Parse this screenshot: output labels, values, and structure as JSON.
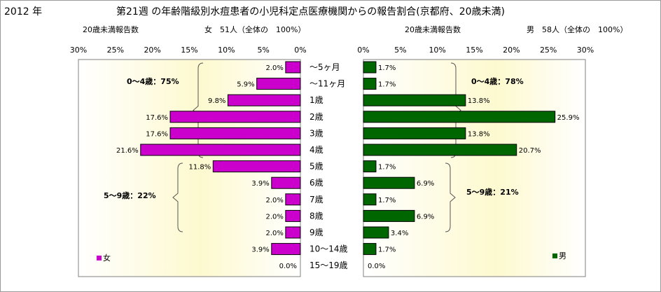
{
  "header": {
    "year": "2012 年",
    "title": "第21週 の年齢階級別水痘患者の小児科定点医療機関からの報告割合(京都府、20歳未満)"
  },
  "female_panel": {
    "subtitle": "20歳未満報告数",
    "summary": "女　51人（全体の　100%）",
    "legend": "女",
    "bracket_a": "0〜4歳：75%",
    "bracket_b": "5〜9歳：22%"
  },
  "male_panel": {
    "subtitle": "20歳未満報告数",
    "summary": "男　58人（全体の　100%）",
    "legend": "男",
    "bracket_a": "0〜4歳：78%",
    "bracket_b": "5〜9歳：21%"
  },
  "colors": {
    "female": "#cc00cc",
    "male": "#006600",
    "gradient_edge": "#fcf7c2"
  },
  "chart_data": {
    "type": "bar",
    "orientation": "horizontal",
    "categories": [
      "〜5ヶ月",
      "〜11ヶ月",
      "1歳",
      "2歳",
      "3歳",
      "4歳",
      "5歳",
      "6歳",
      "7歳",
      "8歳",
      "9歳",
      "10〜14歳",
      "15〜19歳"
    ],
    "series": [
      {
        "name": "女",
        "values": [
          2.0,
          5.9,
          9.8,
          17.6,
          17.6,
          21.6,
          11.8,
          3.9,
          2.0,
          2.0,
          2.0,
          3.9,
          0.0
        ],
        "labels": [
          "2.0%",
          "5.9%",
          "9.8%",
          "17.6%",
          "17.6%",
          "21.6%",
          "11.8%",
          "3.9%",
          "2.0%",
          "2.0%",
          "2.0%",
          "3.9%",
          "0.0%"
        ]
      },
      {
        "name": "男",
        "values": [
          1.7,
          1.7,
          13.8,
          25.9,
          13.8,
          20.7,
          1.7,
          6.9,
          1.7,
          6.9,
          3.4,
          1.7,
          0.0
        ],
        "labels": [
          "1.7%",
          "1.7%",
          "13.8%",
          "25.9%",
          "13.8%",
          "20.7%",
          "1.7%",
          "6.9%",
          "1.7%",
          "6.9%",
          "3.4%",
          "1.7%",
          "0.0%"
        ]
      }
    ],
    "xlim": [
      0,
      30
    ],
    "ticks": [
      "0%",
      "5%",
      "10%",
      "15%",
      "20%",
      "25%",
      "30%"
    ],
    "female_ticks": [
      "30%",
      "25%",
      "20%",
      "15%",
      "10%",
      "5%",
      "0%"
    ],
    "grid": false
  }
}
